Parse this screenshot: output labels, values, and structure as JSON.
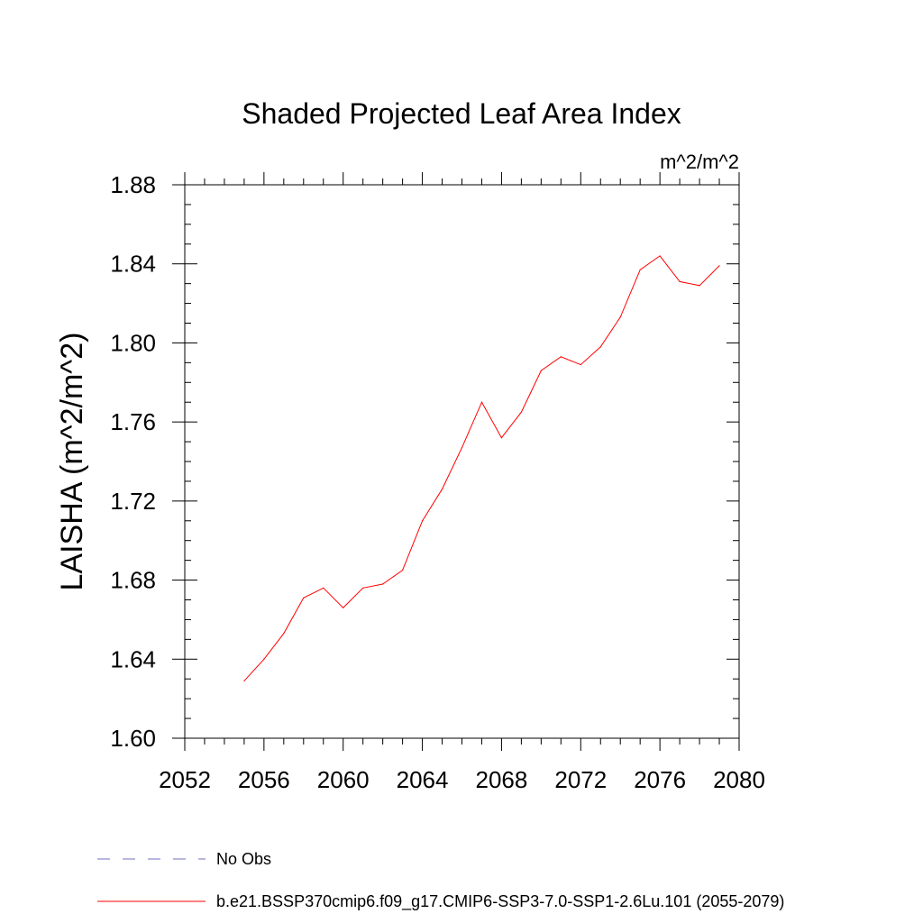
{
  "chart_data": {
    "type": "line",
    "title": "Shaded Projected Leaf Area Index",
    "units_label": "m^2/m^2",
    "ylabel": "LAISHA  (m^2/m^2)",
    "xlabel": "",
    "xlim": [
      2052,
      2080
    ],
    "ylim": [
      1.6,
      1.88
    ],
    "x_ticks": [
      2052,
      2056,
      2060,
      2064,
      2068,
      2072,
      2076,
      2080
    ],
    "x_tick_labels": [
      "2052",
      "2056",
      "2060",
      "2064",
      "2068",
      "2072",
      "2076",
      "2080"
    ],
    "y_ticks": [
      1.6,
      1.64,
      1.68,
      1.72,
      1.76,
      1.8,
      1.84,
      1.88
    ],
    "y_tick_labels": [
      "1.60",
      "1.64",
      "1.68",
      "1.72",
      "1.76",
      "1.80",
      "1.84",
      "1.88"
    ],
    "grid": false,
    "legend_position": "bottom",
    "series": [
      {
        "name": "b.e21.BSSP370cmip6.f09_g17.CMIP6-SSP3-7.0-SSP1-2.6Lu.101 (2055-2079)",
        "color": "#ff0000",
        "style": "solid",
        "x": [
          2055,
          2056,
          2057,
          2058,
          2059,
          2060,
          2061,
          2062,
          2063,
          2064,
          2065,
          2066,
          2067,
          2068,
          2069,
          2070,
          2071,
          2072,
          2073,
          2074,
          2075,
          2076,
          2077,
          2078,
          2079
        ],
        "y": [
          1.629,
          1.64,
          1.653,
          1.671,
          1.676,
          1.666,
          1.676,
          1.678,
          1.685,
          1.71,
          1.726,
          1.747,
          1.77,
          1.752,
          1.765,
          1.786,
          1.793,
          1.789,
          1.798,
          1.813,
          1.837,
          1.844,
          1.831,
          1.829,
          1.839
        ]
      }
    ],
    "legend": [
      {
        "label": "No Obs",
        "color": "#7070c0",
        "style": "dashed"
      },
      {
        "label": "b.e21.BSSP370cmip6.f09_g17.CMIP6-SSP3-7.0-SSP1-2.6Lu.101 (2055-2079)",
        "color": "#ff0000",
        "style": "solid"
      }
    ]
  }
}
